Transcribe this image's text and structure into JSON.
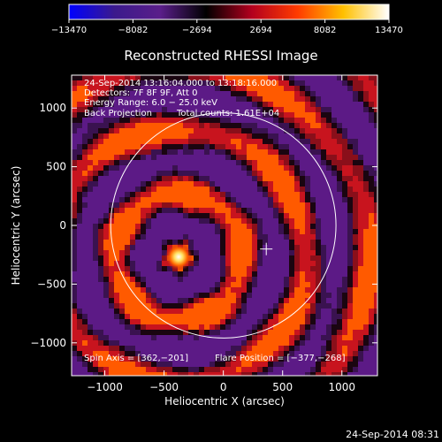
{
  "chart_data": {
    "type": "heatmap",
    "title": "Reconstructed RHESSI Image",
    "xlabel": "Heliocentric X (arcsec)",
    "ylabel": "Heliocentric Y (arcsec)",
    "xlim": [
      -1280,
      1300
    ],
    "ylim": [
      -1280,
      1280
    ],
    "x_ticks": [
      -1000,
      -500,
      0,
      500,
      1000
    ],
    "x_tick_labels": [
      "−1000",
      "−500",
      "0",
      "500",
      "1000"
    ],
    "y_ticks": [
      -1000,
      -500,
      0,
      500,
      1000
    ],
    "y_tick_labels": [
      "−1000",
      "−500",
      "0",
      "500",
      "1000"
    ],
    "colorbar": {
      "range": [
        -13470,
        13470
      ],
      "ticks": [
        -13470,
        -8082,
        -2694,
        2694,
        8082,
        13470
      ],
      "tick_labels": [
        "−13470",
        "−8082",
        "−2694",
        "2694",
        "8082",
        "13470"
      ],
      "colormap": [
        "#0000ff",
        "#3b1a8c",
        "#5a1e8a",
        "#000000",
        "#b3001e",
        "#ff3b00",
        "#ffc000",
        "#ffffff"
      ]
    },
    "annotations": [
      "24-Sep-2014 13:16:04.000 to 13:18:16.000",
      "Detectors: 7F 8F 9F, Att 0",
      "Energy Range: 6.0 − 25.0 keV",
      "Back Projection",
      "Total counts: 1.61E+04"
    ],
    "spin_axis_label": "Spin Axis = [362,−201]",
    "flare_position_label": "Flare Position = [−377,−268]",
    "spin_axis": [
      362,
      -201
    ],
    "flare_position": [
      -377,
      -268
    ],
    "solar_disk_radius_arcsec": 950,
    "grid": false,
    "legend": "colorbar-top"
  },
  "footer": {
    "timestamp": "24-Sep-2014 08:31"
  }
}
